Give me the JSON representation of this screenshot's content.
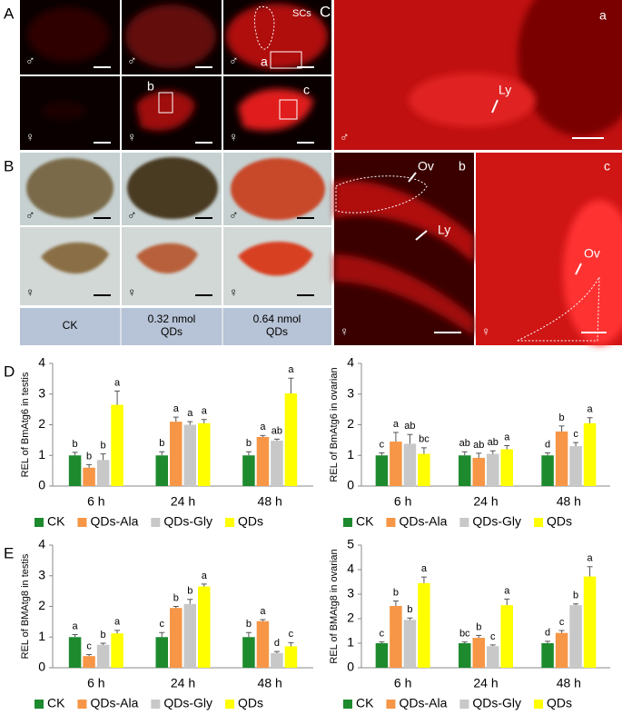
{
  "figure": {
    "panels": [
      "A",
      "B",
      "C",
      "D",
      "E"
    ],
    "male": "♂",
    "female": "♀",
    "annotations": {
      "scs": "SCs",
      "a": "a",
      "b": "b",
      "c": "c",
      "ly": "Ly",
      "ov": "Ov"
    },
    "treatments": [
      [
        "CK"
      ],
      [
        "0.32 nmol",
        "QDs"
      ],
      [
        "0.64 nmol",
        "QDs"
      ]
    ]
  },
  "chart_data": [
    {
      "type": "bar",
      "y_label": "REL of BmAtg6 in testis",
      "categories": [
        "6 h",
        "24 h",
        "48 h"
      ],
      "ylim": [
        0,
        4
      ],
      "yticks": [
        0,
        1,
        2,
        3,
        4
      ],
      "series": [
        {
          "name": "CK",
          "color": "#1e8a2e",
          "values": [
            1.0,
            1.0,
            1.0
          ],
          "errors": [
            0.1,
            0.12,
            0.12
          ],
          "letters": [
            "b",
            "b",
            "b"
          ]
        },
        {
          "name": "QDs-Ala",
          "color": "#f79646",
          "values": [
            0.6,
            2.1,
            1.6
          ],
          "errors": [
            0.1,
            0.15,
            0.05
          ],
          "letters": [
            "b",
            "a",
            "a"
          ]
        },
        {
          "name": "QDs-Gly",
          "color": "#c8c8c8",
          "values": [
            0.85,
            2.0,
            1.48
          ],
          "errors": [
            0.2,
            0.1,
            0.05
          ],
          "letters": [
            "b",
            "a",
            "ab"
          ]
        },
        {
          "name": "QDs",
          "color": "#ffff00",
          "values": [
            2.65,
            2.05,
            3.02
          ],
          "errors": [
            0.45,
            0.12,
            0.5
          ],
          "letters": [
            "a",
            "a",
            "a"
          ]
        }
      ]
    },
    {
      "type": "bar",
      "y_label": "REL of BmAtg6 in ovarian",
      "categories": [
        "6 h",
        "24 h",
        "48 h"
      ],
      "ylim": [
        0,
        4
      ],
      "yticks": [
        0,
        1,
        2,
        3,
        4
      ],
      "series": [
        {
          "name": "CK",
          "color": "#1e8a2e",
          "values": [
            1.0,
            1.0,
            1.0
          ],
          "errors": [
            0.08,
            0.12,
            0.08
          ],
          "letters": [
            "c",
            "ab",
            "d"
          ]
        },
        {
          "name": "QDs-Ala",
          "color": "#f79646",
          "values": [
            1.45,
            0.92,
            1.78
          ],
          "errors": [
            0.3,
            0.15,
            0.18
          ],
          "letters": [
            "a",
            "ab",
            "b"
          ]
        },
        {
          "name": "QDs-Gly",
          "color": "#c8c8c8",
          "values": [
            1.38,
            1.05,
            1.3
          ],
          "errors": [
            0.3,
            0.1,
            0.12
          ],
          "letters": [
            "ab",
            "ab",
            "c"
          ]
        },
        {
          "name": "QDs",
          "color": "#ffff00",
          "values": [
            1.05,
            1.2,
            2.05
          ],
          "errors": [
            0.2,
            0.12,
            0.18
          ],
          "letters": [
            "bc",
            "a",
            "a"
          ]
        }
      ]
    },
    {
      "type": "bar",
      "y_label": "REL of BMAtg8 in testis",
      "categories": [
        "6 h",
        "24 h",
        "48 h"
      ],
      "ylim": [
        0,
        4
      ],
      "yticks": [
        0,
        1,
        2,
        3,
        4
      ],
      "series": [
        {
          "name": "CK",
          "color": "#1e8a2e",
          "values": [
            1.0,
            1.0,
            1.0
          ],
          "errors": [
            0.08,
            0.15,
            0.15
          ],
          "letters": [
            "a",
            "c",
            "b"
          ]
        },
        {
          "name": "QDs-Ala",
          "color": "#f79646",
          "values": [
            0.38,
            1.95,
            1.52
          ],
          "errors": [
            0.05,
            0.05,
            0.05
          ],
          "letters": [
            "c",
            "b",
            "a"
          ]
        },
        {
          "name": "QDs-Gly",
          "color": "#c8c8c8",
          "values": [
            0.75,
            2.08,
            0.48
          ],
          "errors": [
            0.05,
            0.15,
            0.05
          ],
          "letters": [
            "b",
            "b",
            "d"
          ]
        },
        {
          "name": "QDs",
          "color": "#ffff00",
          "values": [
            1.12,
            2.65,
            0.7
          ],
          "errors": [
            0.1,
            0.08,
            0.12
          ],
          "letters": [
            "a",
            "a",
            "c"
          ]
        }
      ]
    },
    {
      "type": "bar",
      "y_label": "REL of BMAtg8 in ovarian",
      "categories": [
        "6 h",
        "24 h",
        "48 h"
      ],
      "ylim": [
        0,
        5
      ],
      "yticks": [
        0,
        1,
        2,
        3,
        4,
        5
      ],
      "series": [
        {
          "name": "CK",
          "color": "#1e8a2e",
          "values": [
            1.0,
            1.0,
            1.0
          ],
          "errors": [
            0.05,
            0.05,
            0.08
          ],
          "letters": [
            "c",
            "bc",
            "d"
          ]
        },
        {
          "name": "QDs-Ala",
          "color": "#f79646",
          "values": [
            2.52,
            1.22,
            1.42
          ],
          "errors": [
            0.2,
            0.1,
            0.1
          ],
          "letters": [
            "b",
            "b",
            "c"
          ]
        },
        {
          "name": "QDs-Gly",
          "color": "#c8c8c8",
          "values": [
            1.95,
            0.88,
            2.55
          ],
          "errors": [
            0.08,
            0.05,
            0.05
          ],
          "letters": [
            "b",
            "c",
            "b"
          ]
        },
        {
          "name": "QDs",
          "color": "#ffff00",
          "values": [
            3.45,
            2.55,
            3.72
          ],
          "errors": [
            0.25,
            0.25,
            0.4
          ],
          "letters": [
            "a",
            "a",
            "a"
          ]
        }
      ]
    }
  ]
}
